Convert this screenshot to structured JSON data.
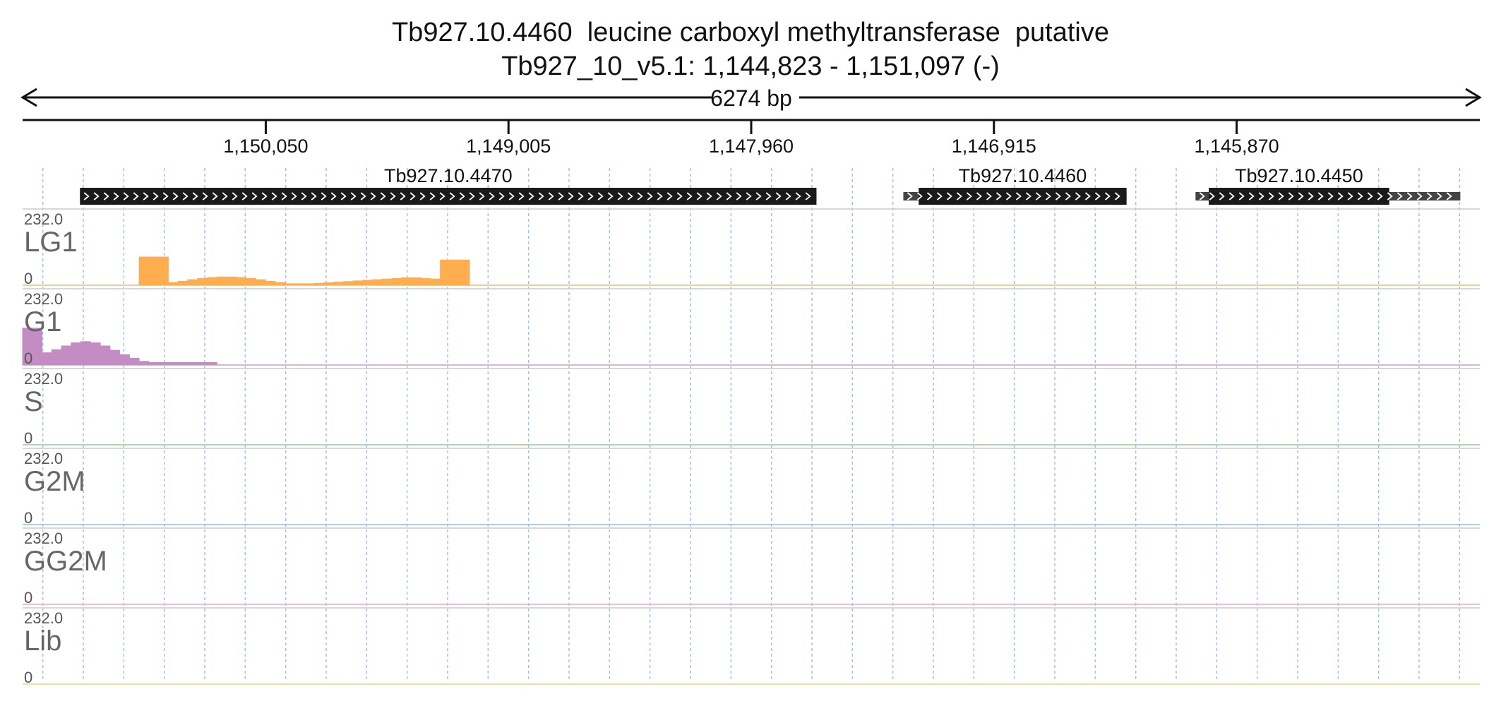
{
  "title": "Tb927.10.4460  leucine carboxyl methyltransferase  putative",
  "subtitle": "Tb927_10_v5.1: 1,144,823 - 1,151,097 (-)",
  "span_label": "6274 bp",
  "chart_data": {
    "type": "area",
    "x_axis": {
      "reversed": true,
      "range": [
        1144823,
        1151097
      ],
      "strand": "-",
      "tick_values": [
        1150050,
        1149005,
        1147960,
        1146915,
        1145870
      ],
      "tick_labels": [
        "1,150,050",
        "1,149,005",
        "1,147,960",
        "1,146,915",
        "1,145,870"
      ]
    },
    "genes": [
      {
        "name": "Tb927.10.4470",
        "start": 1150850,
        "end": 1147679,
        "body_start": 1150850,
        "body_end": 1147679
      },
      {
        "name": "Tb927.10.4460",
        "start": 1147305,
        "end": 1146344,
        "body_start": 1147239,
        "body_end": 1146344
      },
      {
        "name": "Tb927.10.4450",
        "start": 1146047,
        "end": 1144907,
        "body_start": 1145990,
        "body_end": 1145213
      }
    ],
    "ylim": [
      0,
      232.0
    ],
    "y_max_label": "232.0",
    "y_min_label": "0",
    "bins": 150,
    "series": [
      {
        "name": "LG1",
        "color": "#ffad4f",
        "values": [
          0,
          0,
          0,
          0,
          0,
          0,
          0,
          0,
          0,
          0,
          0,
          0,
          92,
          92,
          92,
          9,
          13,
          18,
          22,
          25,
          27,
          27,
          25,
          22,
          18,
          13,
          9,
          5,
          5,
          5,
          6,
          8,
          10,
          12,
          14,
          16,
          18,
          20,
          22,
          24,
          24,
          22,
          20,
          82,
          82,
          82,
          0,
          0,
          0,
          0,
          0,
          0,
          0,
          0,
          0,
          0,
          0,
          0,
          0,
          0,
          0,
          0,
          0,
          0,
          0,
          0,
          0,
          0,
          0,
          0,
          0,
          0,
          0,
          0,
          0,
          0,
          0,
          0,
          0,
          0,
          0,
          0,
          0,
          0,
          0,
          0,
          0,
          0,
          0,
          0,
          0,
          0,
          0,
          0,
          0,
          0,
          0,
          0,
          0,
          0,
          0,
          0,
          0,
          0,
          0,
          0,
          0,
          0,
          0,
          0,
          0,
          0,
          0,
          0,
          0,
          0,
          0,
          0,
          0,
          0,
          0,
          0,
          0,
          0,
          0,
          0,
          0,
          0,
          0,
          0,
          0,
          0,
          0,
          0,
          0,
          0,
          0,
          0,
          0,
          0,
          0,
          0,
          0,
          0,
          0,
          0,
          0,
          0,
          0,
          0
        ]
      },
      {
        "name": "G1",
        "color": "#c38dc3",
        "values": [
          120,
          120,
          40,
          50,
          62,
          72,
          76,
          72,
          62,
          48,
          34,
          22,
          12,
          8,
          8,
          8,
          8,
          8,
          8,
          8,
          0,
          0,
          0,
          0,
          0,
          0,
          0,
          0,
          0,
          0,
          0,
          0,
          0,
          0,
          0,
          0,
          0,
          0,
          0,
          0,
          0,
          0,
          0,
          0,
          0,
          0,
          0,
          0,
          0,
          0,
          0,
          0,
          0,
          0,
          0,
          0,
          0,
          0,
          0,
          0,
          0,
          0,
          0,
          0,
          0,
          0,
          0,
          0,
          0,
          0,
          0,
          0,
          0,
          0,
          0,
          0,
          0,
          0,
          0,
          0,
          0,
          0,
          0,
          0,
          0,
          0,
          0,
          0,
          0,
          0,
          0,
          0,
          0,
          0,
          0,
          0,
          0,
          0,
          0,
          0,
          0,
          0,
          0,
          0,
          0,
          0,
          0,
          0,
          0,
          0,
          0,
          0,
          0,
          0,
          0,
          0,
          0,
          0,
          0,
          0,
          0,
          0,
          0,
          0,
          0,
          0,
          0,
          0,
          0,
          0,
          0,
          0,
          0,
          0,
          0,
          0,
          0,
          0,
          0,
          0,
          0,
          0,
          0,
          0,
          0,
          0,
          0,
          0,
          0,
          0
        ]
      },
      {
        "name": "S",
        "color": "#7bcc7b",
        "values": []
      },
      {
        "name": "G2M",
        "color": "#79b4e0",
        "values": []
      },
      {
        "name": "GG2M",
        "color": "#f59cc7",
        "values": []
      },
      {
        "name": "Lib",
        "color": "#e5da6e",
        "values": []
      }
    ]
  }
}
